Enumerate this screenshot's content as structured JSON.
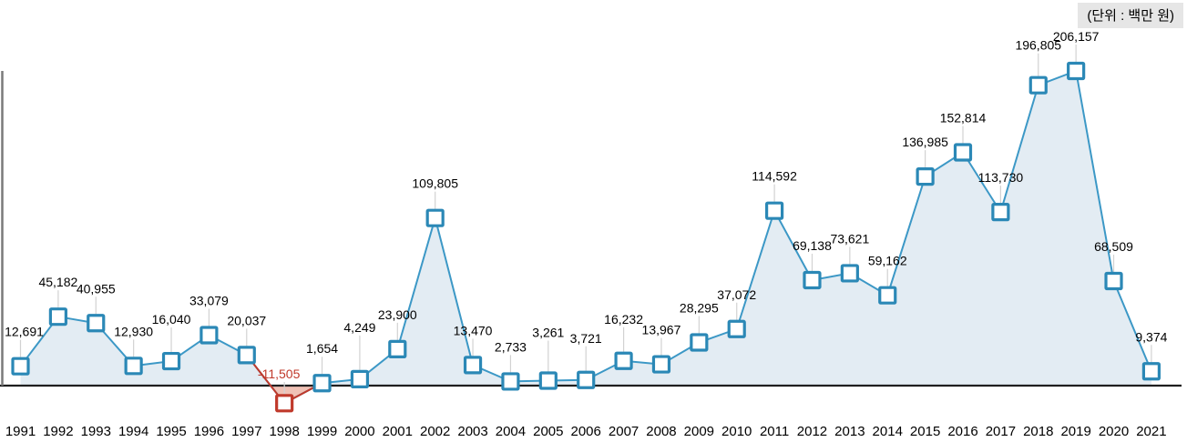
{
  "unit_note": "(단위 : 백만 원)",
  "chart_data": {
    "type": "area",
    "title": "",
    "xlabel": "",
    "ylabel": "",
    "unit_note": "(단위 : 백만 원)",
    "categories": [
      1991,
      1992,
      1993,
      1994,
      1995,
      1996,
      1997,
      1998,
      1999,
      2000,
      2001,
      2002,
      2003,
      2004,
      2005,
      2006,
      2007,
      2008,
      2009,
      2010,
      2011,
      2012,
      2013,
      2014,
      2015,
      2016,
      2017,
      2018,
      2019,
      2020,
      2021
    ],
    "values": [
      12691,
      45182,
      40955,
      12930,
      16040,
      33079,
      20037,
      -11505,
      1654,
      4249,
      23900,
      109805,
      13470,
      2733,
      3261,
      3721,
      16232,
      13967,
      28295,
      37072,
      114592,
      69138,
      73621,
      59162,
      136985,
      152814,
      113730,
      196805,
      206157,
      68509,
      9374
    ],
    "ylim": [
      -25000,
      215000
    ],
    "grid": false,
    "legend": false,
    "data_labels": true,
    "marker_shape": "square",
    "colors": {
      "line": "#3c98c6",
      "marker_border": "#2b88b6",
      "marker_fill": "#ffffff",
      "area_fill": "#e3ecf3",
      "negative_line": "#c0392b",
      "negative_fill": "#f0c2b6",
      "negative_label": "#c0392b",
      "leader_line": "#d2d2d2",
      "baseline": "#1f1f1f",
      "axis_line": "#7a7a7a",
      "label_text": "#000000",
      "unit_bg": "#e6e6e6"
    },
    "label_dy_overrides": {
      "1995": -8,
      "2000": -19,
      "2005": -15,
      "2006": -8,
      "2007": -8,
      "2018": -6
    },
    "label_dx_overrides": {
      "1991": 4,
      "1998": -6
    }
  }
}
